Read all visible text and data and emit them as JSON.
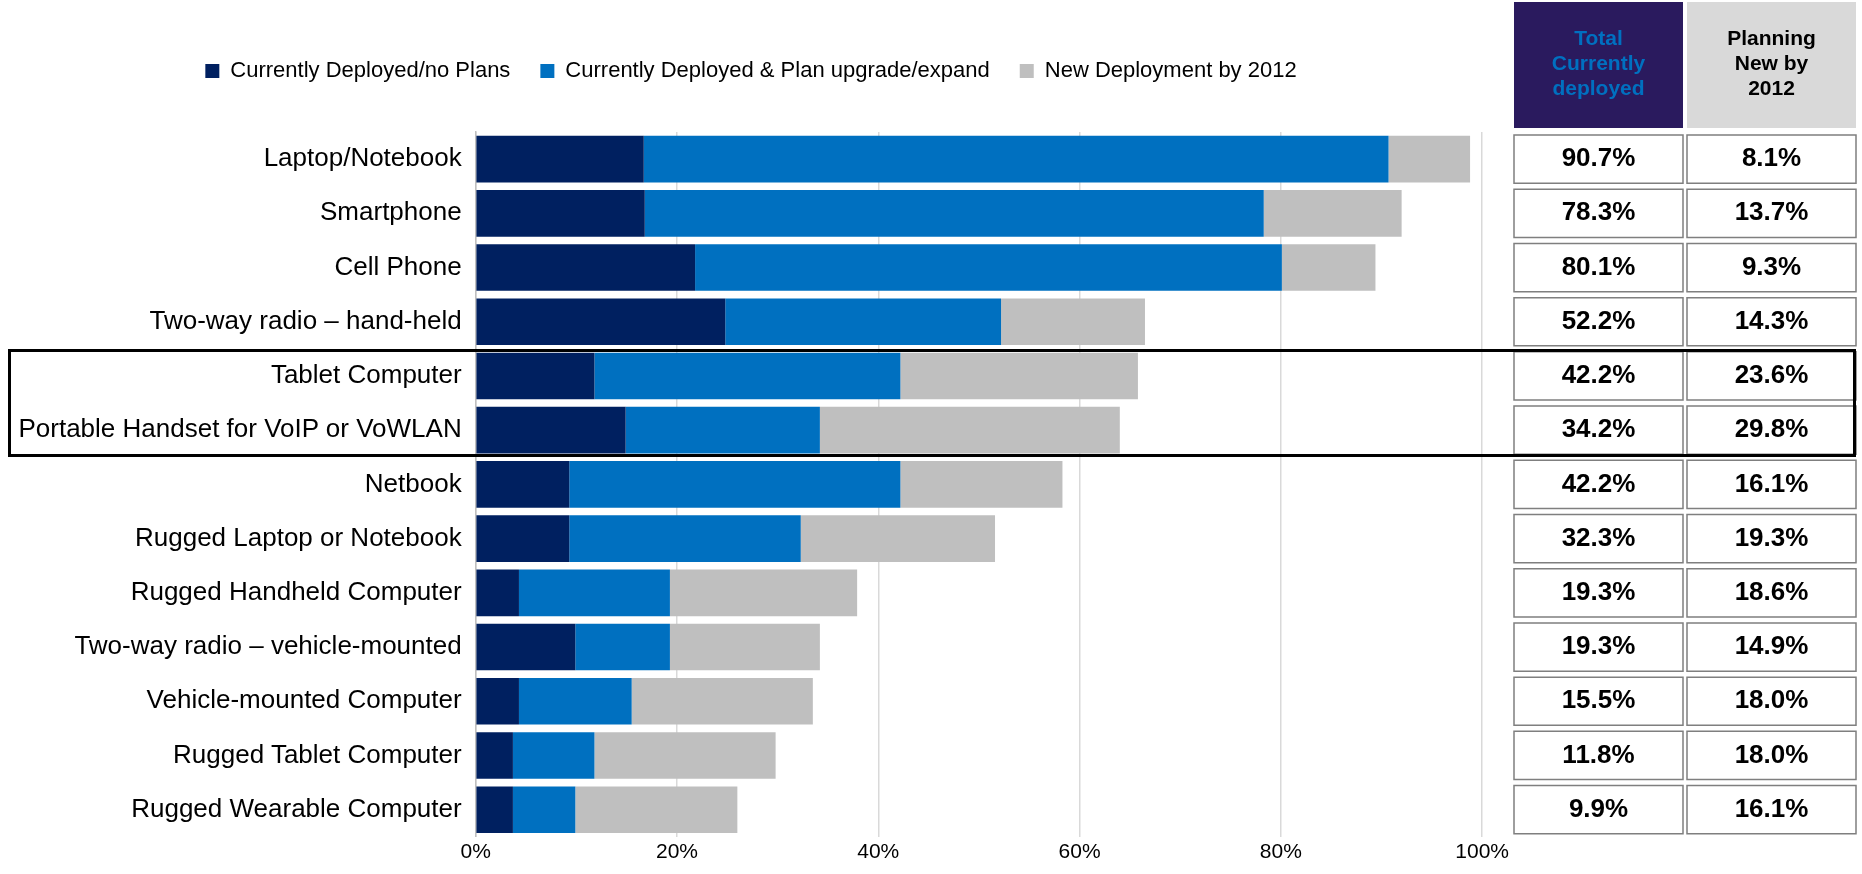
{
  "chart_data": [
    {
      "type": "bar",
      "orientation": "horizontal",
      "stacked": true,
      "categories": [
        "Laptop/Notebook",
        "Smartphone",
        "Cell Phone",
        "Two-way radio – hand-held",
        "Tablet Computer",
        "Portable Handset for VoIP or VoWLAN",
        "Netbook",
        "Rugged Laptop or Notebook",
        "Rugged Handheld Computer",
        "Two-way radio – vehicle-mounted",
        "Vehicle-mounted Computer",
        "Rugged Tablet Computer",
        "Rugged Wearable Computer"
      ],
      "series": [
        {
          "name": "Currently Deployed/no Plans",
          "color": "#002060",
          "values": [
            16.7,
            16.8,
            21.8,
            24.8,
            11.8,
            14.9,
            9.3,
            9.3,
            4.3,
            9.9,
            4.3,
            3.7,
            3.7
          ]
        },
        {
          "name": "Currently Deployed & Plan upgrade/expand",
          "color": "#0070c0",
          "values": [
            74.0,
            61.5,
            58.3,
            27.4,
            30.4,
            19.3,
            32.9,
            23.0,
            15.0,
            9.4,
            11.2,
            8.1,
            6.2
          ]
        },
        {
          "name": "New Deployment by 2012",
          "color": "#bfbfbf",
          "values": [
            8.1,
            13.7,
            9.3,
            14.3,
            23.6,
            29.8,
            16.1,
            19.3,
            18.6,
            14.9,
            18.0,
            18.0,
            16.1
          ]
        }
      ],
      "xlim": [
        0,
        100
      ],
      "xticks": [
        {
          "value": 0,
          "label": "0%"
        },
        {
          "value": 20,
          "label": "20%"
        },
        {
          "value": 40,
          "label": "40%"
        },
        {
          "value": 60,
          "label": "60%"
        },
        {
          "value": 80,
          "label": "80%"
        },
        {
          "value": 100,
          "label": "100%"
        }
      ],
      "grid": "x",
      "legend": "top"
    },
    {
      "type": "other",
      "categories": [
        "Total Currently deployed",
        "Planning New by 2012"
      ],
      "cell_labels": [
        [
          "90.7%",
          "8.1%"
        ],
        [
          "78.3%",
          "13.7%"
        ],
        [
          "80.1%",
          "9.3%"
        ],
        [
          "52.2%",
          "14.3%"
        ],
        [
          "42.2%",
          "23.6%"
        ],
        [
          "34.2%",
          "29.8%"
        ],
        [
          "42.2%",
          "16.1%"
        ],
        [
          "32.3%",
          "19.3%"
        ],
        [
          "19.3%",
          "18.6%"
        ],
        [
          "19.3%",
          "14.9%"
        ],
        [
          "15.5%",
          "18.0%"
        ],
        [
          "11.8%",
          "18.0%"
        ],
        [
          "9.9%",
          "16.1%"
        ]
      ]
    }
  ]
}
